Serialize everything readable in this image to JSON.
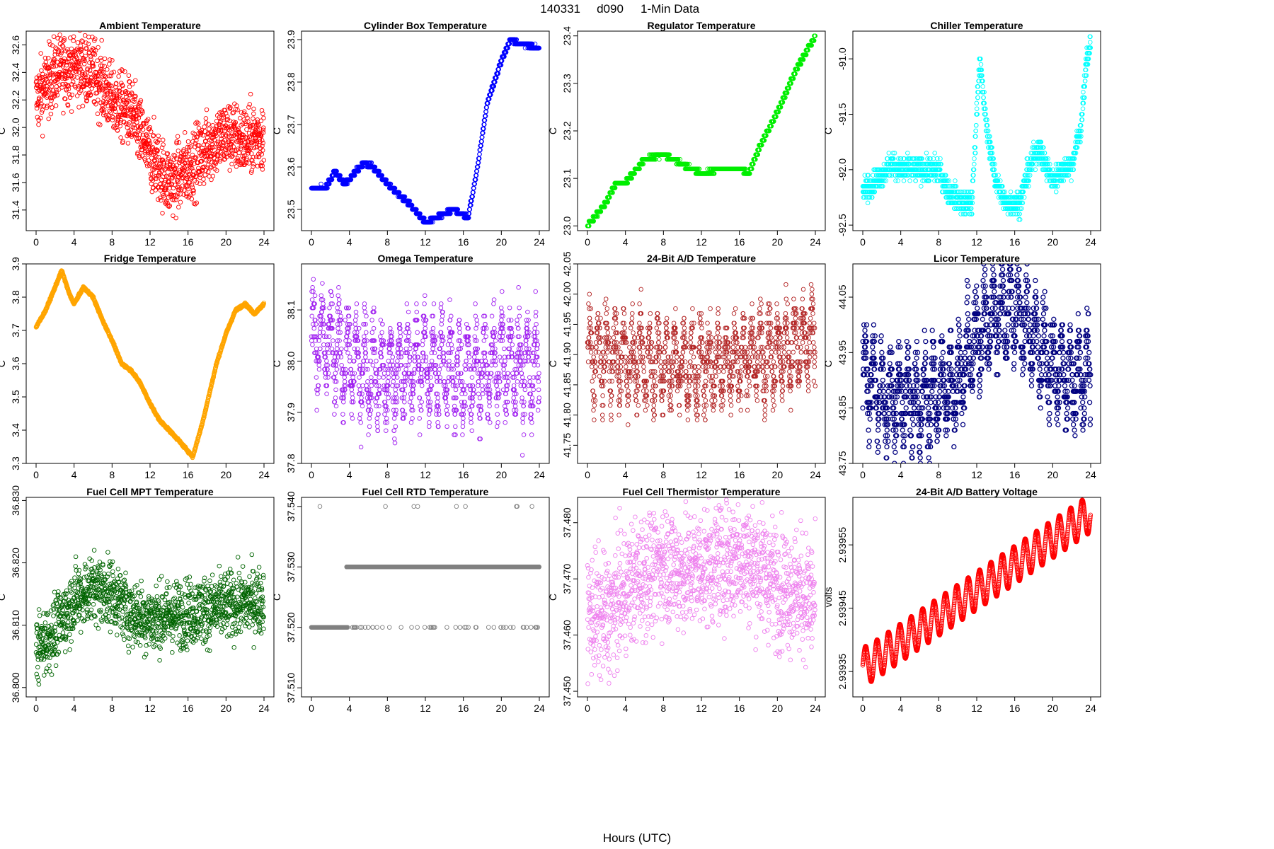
{
  "figure": {
    "title_id": "140331",
    "title_site": "d090",
    "title_kind": "1-Min Data",
    "xlabel": "Hours (UTC)"
  },
  "chart_data": [
    {
      "type": "scatter",
      "title": "Ambient Temperature",
      "ylabel": "C",
      "color": "#ff0000",
      "xlim": [
        0,
        24
      ],
      "ylim": [
        31.25,
        32.7
      ],
      "xticks": [
        0,
        4,
        8,
        12,
        16,
        20,
        24
      ],
      "yticks": [
        31.4,
        31.6,
        31.8,
        32.0,
        32.2,
        32.4,
        32.6
      ],
      "decimals": 1,
      "trend": [
        [
          0,
          32.2
        ],
        [
          2,
          32.4
        ],
        [
          4,
          32.45
        ],
        [
          6,
          32.4
        ],
        [
          8,
          32.2
        ],
        [
          10,
          32.1
        ],
        [
          11,
          31.95
        ],
        [
          12,
          31.8
        ],
        [
          14,
          31.6
        ],
        [
          16,
          31.7
        ],
        [
          18,
          31.85
        ],
        [
          20,
          31.95
        ],
        [
          22,
          31.9
        ],
        [
          24,
          31.95
        ]
      ],
      "noise": 0.28,
      "bands": 0,
      "step": 0,
      "rings": 0
    },
    {
      "type": "scatter",
      "title": "Cylinder Box Temperature",
      "ylabel": "C",
      "color": "#0000ff",
      "xlim": [
        0,
        24
      ],
      "ylim": [
        23.45,
        23.92
      ],
      "xticks": [
        0,
        4,
        8,
        12,
        16,
        20,
        24
      ],
      "yticks": [
        23.5,
        23.6,
        23.7,
        23.8,
        23.9
      ],
      "decimals": 1,
      "trend": [
        [
          0,
          23.55
        ],
        [
          1.5,
          23.55
        ],
        [
          2.5,
          23.59
        ],
        [
          3.5,
          23.56
        ],
        [
          5.5,
          23.61
        ],
        [
          6.5,
          23.6
        ],
        [
          8,
          23.56
        ],
        [
          10,
          23.52
        ],
        [
          12,
          23.47
        ],
        [
          13,
          23.48
        ],
        [
          15,
          23.5
        ],
        [
          16.5,
          23.48
        ],
        [
          17.5,
          23.6
        ],
        [
          18.5,
          23.75
        ],
        [
          20,
          23.85
        ],
        [
          21,
          23.9
        ],
        [
          22,
          23.89
        ],
        [
          24,
          23.88
        ]
      ],
      "noise": 0.004,
      "bands": 0,
      "step": 0.01,
      "rings": 0
    },
    {
      "type": "scatter",
      "title": "Regulator Temperature",
      "ylabel": "C",
      "color": "#00ee00",
      "xlim": [
        0,
        24
      ],
      "ylim": [
        22.99,
        23.41
      ],
      "xticks": [
        0,
        4,
        8,
        12,
        16,
        20,
        24
      ],
      "yticks": [
        23.0,
        23.1,
        23.2,
        23.3,
        23.4
      ],
      "decimals": 1,
      "trend": [
        [
          0,
          23.0
        ],
        [
          2,
          23.05
        ],
        [
          3,
          23.09
        ],
        [
          4,
          23.09
        ],
        [
          6,
          23.14
        ],
        [
          8,
          23.15
        ],
        [
          10,
          23.13
        ],
        [
          12,
          23.11
        ],
        [
          14,
          23.12
        ],
        [
          16,
          23.12
        ],
        [
          17,
          23.11
        ],
        [
          18,
          23.16
        ],
        [
          20,
          23.24
        ],
        [
          22,
          23.33
        ],
        [
          24,
          23.4
        ]
      ],
      "noise": 0.003,
      "bands": 0,
      "step": 0.01,
      "rings": 0
    },
    {
      "type": "scatter",
      "title": "Chiller Temperature",
      "ylabel": "C",
      "color": "#00ffff",
      "xlim": [
        0,
        24
      ],
      "ylim": [
        -92.55,
        -90.75
      ],
      "xticks": [
        0,
        4,
        8,
        12,
        16,
        20,
        24
      ],
      "yticks": [
        -92.5,
        -92.0,
        -91.5,
        -91.0
      ],
      "decimals": 1,
      "trend": [
        [
          0,
          -92.2
        ],
        [
          2,
          -92.05
        ],
        [
          3,
          -91.95
        ],
        [
          4,
          -92.0
        ],
        [
          8,
          -92.0
        ],
        [
          9,
          -92.2
        ],
        [
          10.5,
          -92.3
        ],
        [
          11.5,
          -92.3
        ],
        [
          12.3,
          -91.0
        ],
        [
          13,
          -91.6
        ],
        [
          14,
          -92.1
        ],
        [
          15,
          -92.3
        ],
        [
          16.5,
          -92.3
        ],
        [
          17.5,
          -92.0
        ],
        [
          18.5,
          -91.8
        ],
        [
          20,
          -92.1
        ],
        [
          21,
          -92.0
        ],
        [
          22,
          -91.95
        ],
        [
          23,
          -91.6
        ],
        [
          23.6,
          -91.0
        ],
        [
          24,
          -90.85
        ]
      ],
      "noise": 0.12,
      "bands": 0,
      "step": 0.05,
      "rings": 0
    },
    {
      "type": "scatter",
      "title": "Fridge Temperature",
      "ylabel": "C",
      "color": "#ffa500",
      "xlim": [
        0,
        24
      ],
      "ylim": [
        3.3,
        3.9
      ],
      "xticks": [
        0,
        4,
        8,
        12,
        16,
        20,
        24
      ],
      "yticks": [
        3.3,
        3.4,
        3.5,
        3.6,
        3.7,
        3.8,
        3.9
      ],
      "decimals": 1,
      "trend": [
        [
          0,
          3.71
        ],
        [
          1,
          3.76
        ],
        [
          2,
          3.83
        ],
        [
          2.7,
          3.88
        ],
        [
          3.5,
          3.81
        ],
        [
          4,
          3.78
        ],
        [
          5,
          3.83
        ],
        [
          6,
          3.8
        ],
        [
          7,
          3.73
        ],
        [
          8,
          3.67
        ],
        [
          9,
          3.6
        ],
        [
          10,
          3.58
        ],
        [
          11,
          3.54
        ],
        [
          12,
          3.48
        ],
        [
          13,
          3.43
        ],
        [
          14,
          3.4
        ],
        [
          15,
          3.37
        ],
        [
          16.5,
          3.32
        ],
        [
          17.5,
          3.42
        ],
        [
          19,
          3.6
        ],
        [
          20,
          3.69
        ],
        [
          21,
          3.76
        ],
        [
          22,
          3.78
        ],
        [
          23,
          3.75
        ],
        [
          24,
          3.78
        ]
      ],
      "noise": 0.004,
      "bands": 0,
      "step": 0,
      "rings": 0
    },
    {
      "type": "scatter",
      "title": "Omega Temperature",
      "ylabel": "C",
      "color": "#a020f0",
      "xlim": [
        0,
        24
      ],
      "ylim": [
        37.8,
        38.19
      ],
      "xticks": [
        0,
        4,
        8,
        12,
        16,
        20,
        24
      ],
      "yticks": [
        37.8,
        37.9,
        38.0,
        38.1
      ],
      "decimals": 1,
      "trend": [
        [
          0,
          38.05
        ],
        [
          4,
          38.0
        ],
        [
          8,
          37.97
        ],
        [
          12,
          38.0
        ],
        [
          16,
          37.97
        ],
        [
          20,
          38.0
        ],
        [
          24,
          37.98
        ]
      ],
      "noise": 0.14,
      "bands": 1,
      "step": 0.008,
      "rings": 0
    },
    {
      "type": "scatter",
      "title": "24-Bit A/D Temperature",
      "ylabel": "C",
      "color": "#b22222",
      "xlim": [
        0,
        24
      ],
      "ylim": [
        41.72,
        42.05
      ],
      "xticks": [
        0,
        4,
        8,
        12,
        16,
        20,
        24
      ],
      "yticks": [
        41.75,
        41.8,
        41.85,
        41.9,
        41.95,
        42.0,
        42.05
      ],
      "decimals": 2,
      "trend": [
        [
          0,
          41.9
        ],
        [
          12,
          41.88
        ],
        [
          24,
          41.92
        ]
      ],
      "noise": 0.1,
      "bands": 1,
      "step": 0.008,
      "rings": 0
    },
    {
      "type": "scatter",
      "title": "Licor Temperature",
      "ylabel": "C",
      "color": "#000080",
      "xlim": [
        0,
        24
      ],
      "ylim": [
        43.75,
        44.11
      ],
      "xticks": [
        0,
        4,
        8,
        12,
        16,
        20,
        24
      ],
      "yticks": [
        43.75,
        43.85,
        43.95,
        44.05
      ],
      "decimals": 2,
      "trend": [
        [
          0,
          43.92
        ],
        [
          2,
          43.87
        ],
        [
          4,
          43.87
        ],
        [
          6,
          43.86
        ],
        [
          8,
          43.88
        ],
        [
          10,
          43.9
        ],
        [
          12,
          43.98
        ],
        [
          14,
          44.02
        ],
        [
          16,
          44.03
        ],
        [
          18,
          43.98
        ],
        [
          20,
          43.92
        ],
        [
          22,
          43.9
        ],
        [
          24,
          43.92
        ]
      ],
      "noise": 0.12,
      "bands": 1,
      "step": 0.01,
      "rings": 1
    },
    {
      "type": "scatter",
      "title": "Fuel Cell MPT Temperature",
      "ylabel": "C",
      "color": "#006400",
      "xlim": [
        0,
        24
      ],
      "ylim": [
        36.7985,
        36.8305
      ],
      "xticks": [
        0,
        4,
        8,
        12,
        16,
        20,
        24
      ],
      "yticks": [
        36.8,
        36.81,
        36.82,
        36.83
      ],
      "decimals": 3,
      "trend": [
        [
          0,
          36.806
        ],
        [
          2,
          36.809
        ],
        [
          4,
          36.814
        ],
        [
          6,
          36.816
        ],
        [
          8,
          36.815
        ],
        [
          10,
          36.812
        ],
        [
          12,
          36.811
        ],
        [
          16,
          36.812
        ],
        [
          20,
          36.813
        ],
        [
          24,
          36.814
        ]
      ],
      "noise": 0.006,
      "bands": 0,
      "step": 0,
      "rings": 0
    },
    {
      "type": "scatter",
      "title": "Fuel Cell RTD Temperature",
      "ylabel": "C",
      "color": "#808080",
      "xlim": [
        0,
        24
      ],
      "ylim": [
        37.5085,
        37.5415
      ],
      "xticks": [
        0,
        4,
        8,
        12,
        16,
        20,
        24
      ],
      "yticks": [
        37.51,
        37.52,
        37.53,
        37.54
      ],
      "decimals": 3,
      "trend": [
        [
          0,
          37.52
        ],
        [
          24,
          37.52
        ]
      ],
      "noise": 0,
      "bands": 0,
      "step": 0,
      "rings": 0,
      "levels": [
        37.52,
        37.53
      ]
    },
    {
      "type": "scatter",
      "title": "Fuel Cell Thermistor Temperature",
      "ylabel": "C",
      "color": "#ee82ee",
      "xlim": [
        0,
        24
      ],
      "ylim": [
        37.449,
        37.4845
      ],
      "xticks": [
        0,
        4,
        8,
        12,
        16,
        20,
        24
      ],
      "yticks": [
        37.45,
        37.46,
        37.47,
        37.48
      ],
      "decimals": 3,
      "trend": [
        [
          0,
          37.464
        ],
        [
          2,
          37.463
        ],
        [
          4,
          37.468
        ],
        [
          6,
          37.471
        ],
        [
          8,
          37.473
        ],
        [
          10,
          37.471
        ],
        [
          12,
          37.472
        ],
        [
          14,
          37.473
        ],
        [
          16,
          37.474
        ],
        [
          18,
          37.472
        ],
        [
          20,
          37.469
        ],
        [
          22,
          37.468
        ],
        [
          24,
          37.466
        ]
      ],
      "noise": 0.012,
      "bands": 0,
      "step": 0,
      "rings": 0
    },
    {
      "type": "scatter",
      "title": "24-Bit A/D Battery Voltage",
      "ylabel": "volts",
      "color": "#ff0000",
      "xlim": [
        0,
        24
      ],
      "ylim": [
        2.93931,
        2.939625
      ],
      "xticks": [
        0,
        4,
        8,
        12,
        16,
        20,
        24
      ],
      "yticks": [
        2.93935,
        2.93945,
        2.93955
      ],
      "decimals": 5,
      "trend": [
        [
          0.5,
          2.93936
        ],
        [
          24,
          2.9396
        ]
      ],
      "noise": 0,
      "bands": 0,
      "step": 0,
      "rings": 0,
      "wave": 3e-05
    }
  ]
}
